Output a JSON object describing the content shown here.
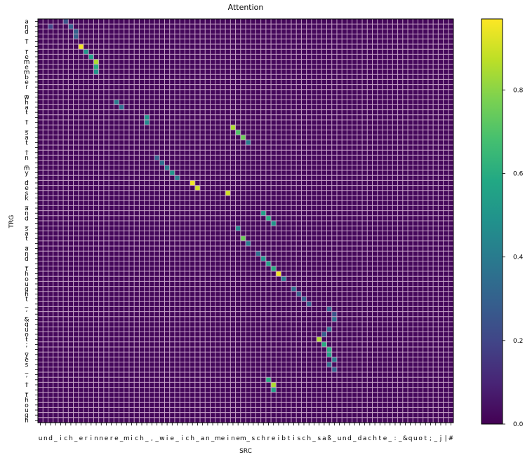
{
  "chart_data": {
    "type": "heatmap",
    "title": "Attention",
    "xlabel": "SRC",
    "ylabel": "TRG",
    "x_tokens": [
      "u",
      "n",
      "d",
      "_",
      "i",
      "c",
      "h",
      "_",
      "e",
      "r",
      "i",
      "n",
      "n",
      "e",
      "r",
      "e",
      "_",
      "m",
      "i",
      "c",
      "h",
      "_",
      ",",
      "_",
      "w",
      "i",
      "e",
      "_",
      "i",
      "c",
      "h",
      "_",
      "a",
      "n",
      "_",
      "m",
      "e",
      "i",
      "n",
      "e",
      "m",
      "_",
      "s",
      "c",
      "h",
      "r",
      "e",
      "i",
      "b",
      "t",
      "i",
      "s",
      "c",
      "h",
      "_",
      "s",
      "a",
      "ß",
      "_",
      "u",
      "n",
      "d",
      "_",
      "d",
      "a",
      "c",
      "h",
      "t",
      "e",
      "_",
      ":",
      "_",
      "&",
      "q",
      "u",
      "o",
      "t",
      ";",
      "_",
      "j",
      "|",
      "#"
    ],
    "y_tokens": [
      "a",
      "n",
      "d",
      "_",
      "I",
      "_",
      "r",
      "e",
      "m",
      "e",
      "m",
      "b",
      "e",
      "r",
      "_",
      "w",
      "h",
      "a",
      "t",
      "_",
      "I",
      "_",
      "s",
      "a",
      "t",
      "_",
      "i",
      "n",
      "_",
      "m",
      "y",
      "_",
      "d",
      "e",
      "s",
      "k",
      "_",
      "a",
      "n",
      "d",
      "_",
      "s",
      "a",
      "t",
      "_",
      "a",
      "n",
      "d",
      "_",
      "t",
      "h",
      "o",
      "u",
      "g",
      "h",
      "t",
      "_",
      ",",
      "_",
      "&",
      "q",
      "u",
      "o",
      "t",
      ";",
      "_",
      "y",
      "e",
      "s",
      "_",
      ",",
      "_",
      "I",
      "_",
      "t",
      "h",
      "o",
      "u",
      "g",
      "h"
    ],
    "high_attention": [
      {
        "x": 8,
        "y": 5,
        "value": 0.95
      },
      {
        "x": 9,
        "y": 6,
        "value": 0.5
      },
      {
        "x": 10,
        "y": 7,
        "value": 0.55
      },
      {
        "x": 11,
        "y": 8,
        "value": 0.85
      },
      {
        "x": 11,
        "y": 9,
        "value": 0.6
      },
      {
        "x": 11,
        "y": 10,
        "value": 0.5
      },
      {
        "x": 15,
        "y": 16,
        "value": 0.4
      },
      {
        "x": 16,
        "y": 17,
        "value": 0.35
      },
      {
        "x": 21,
        "y": 19,
        "value": 0.5
      },
      {
        "x": 21,
        "y": 20,
        "value": 0.45
      },
      {
        "x": 38,
        "y": 21,
        "value": 0.85
      },
      {
        "x": 39,
        "y": 22,
        "value": 0.7
      },
      {
        "x": 40,
        "y": 23,
        "value": 0.75
      },
      {
        "x": 41,
        "y": 24,
        "value": 0.4
      },
      {
        "x": 23,
        "y": 27,
        "value": 0.3
      },
      {
        "x": 24,
        "y": 28,
        "value": 0.35
      },
      {
        "x": 25,
        "y": 29,
        "value": 0.4
      },
      {
        "x": 26,
        "y": 30,
        "value": 0.5
      },
      {
        "x": 27,
        "y": 31,
        "value": 0.4
      },
      {
        "x": 30,
        "y": 32,
        "value": 0.95
      },
      {
        "x": 31,
        "y": 33,
        "value": 0.9
      },
      {
        "x": 37,
        "y": 34,
        "value": 0.9
      },
      {
        "x": 44,
        "y": 38,
        "value": 0.55
      },
      {
        "x": 45,
        "y": 39,
        "value": 0.6
      },
      {
        "x": 46,
        "y": 40,
        "value": 0.5
      },
      {
        "x": 39,
        "y": 41,
        "value": 0.45
      },
      {
        "x": 40,
        "y": 43,
        "value": 0.75
      },
      {
        "x": 41,
        "y": 44,
        "value": 0.4
      },
      {
        "x": 43,
        "y": 46,
        "value": 0.35
      },
      {
        "x": 44,
        "y": 47,
        "value": 0.5
      },
      {
        "x": 45,
        "y": 48,
        "value": 0.55
      },
      {
        "x": 46,
        "y": 49,
        "value": 0.6
      },
      {
        "x": 47,
        "y": 50,
        "value": 0.95
      },
      {
        "x": 48,
        "y": 51,
        "value": 0.4
      },
      {
        "x": 50,
        "y": 53,
        "value": 0.35
      },
      {
        "x": 51,
        "y": 54,
        "value": 0.3
      },
      {
        "x": 52,
        "y": 55,
        "value": 0.3
      },
      {
        "x": 53,
        "y": 56,
        "value": 0.3
      },
      {
        "x": 57,
        "y": 57,
        "value": 0.3
      },
      {
        "x": 58,
        "y": 58,
        "value": 0.25
      },
      {
        "x": 58,
        "y": 59,
        "value": 0.35
      },
      {
        "x": 57,
        "y": 61,
        "value": 0.35
      },
      {
        "x": 56,
        "y": 62,
        "value": 0.3
      },
      {
        "x": 55,
        "y": 63,
        "value": 0.85
      },
      {
        "x": 56,
        "y": 64,
        "value": 0.6
      },
      {
        "x": 57,
        "y": 65,
        "value": 0.6
      },
      {
        "x": 57,
        "y": 66,
        "value": 0.55
      },
      {
        "x": 58,
        "y": 67,
        "value": 0.4
      },
      {
        "x": 57,
        "y": 68,
        "value": 0.35
      },
      {
        "x": 58,
        "y": 69,
        "value": 0.3
      },
      {
        "x": 45,
        "y": 71,
        "value": 0.6
      },
      {
        "x": 46,
        "y": 72,
        "value": 0.85
      },
      {
        "x": 46,
        "y": 73,
        "value": 0.55
      },
      {
        "x": 5,
        "y": 0,
        "value": 0.25
      },
      {
        "x": 6,
        "y": 1,
        "value": 0.3
      },
      {
        "x": 7,
        "y": 2,
        "value": 0.3
      },
      {
        "x": 7,
        "y": 3,
        "value": 0.3
      },
      {
        "x": 2,
        "y": 1,
        "value": 0.2
      }
    ],
    "colorbar": {
      "colormap": "viridis",
      "ticks": [
        "0.0",
        "0.2",
        "0.4",
        "0.6",
        "0.8"
      ],
      "range": [
        0,
        0.97
      ]
    }
  }
}
